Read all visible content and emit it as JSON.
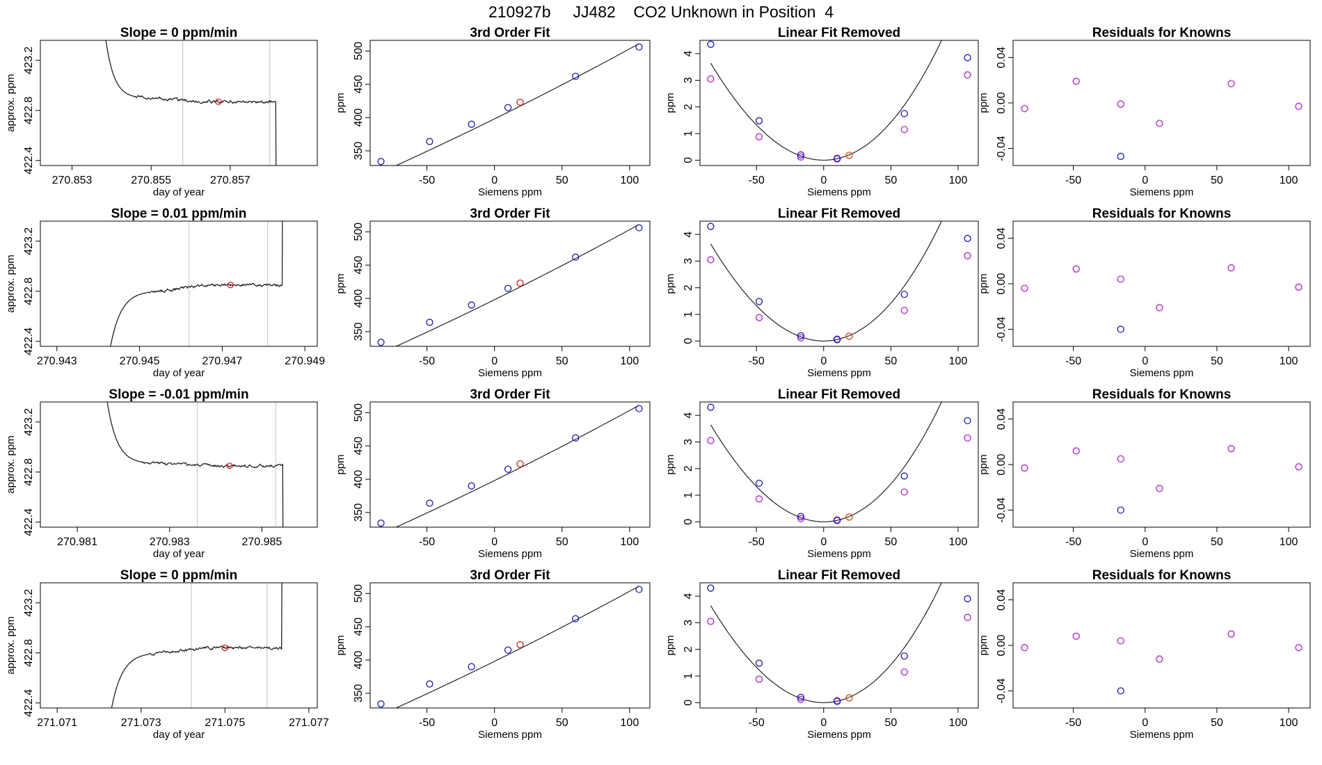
{
  "page_title": "210927b     JJ482    CO2 Unknown in Position  4",
  "colors": {
    "trace": "#222222",
    "window_lines": "#cccccc",
    "unknown_point": "#ff0000",
    "unknown_point_fit": "#ff4500",
    "known_points": "#0000ff",
    "residual_points": "#cc00ff",
    "axis": "#000000"
  },
  "chart_data": [
    {
      "type": "line",
      "row": 1,
      "panel": "trace",
      "title": "Slope =  0  ppm/min",
      "xlabel": "day of year",
      "ylabel": "approx. ppm",
      "xlim": [
        270.8522,
        270.8592
      ],
      "ylim": [
        422.36,
        423.36
      ],
      "xticks": [
        "270.853",
        "270.855",
        "270.857"
      ],
      "xtick_values": [
        270.853,
        270.855,
        270.857
      ],
      "yticks": [
        "422.4",
        "422.8",
        "423.2"
      ],
      "ytick_values": [
        422.4,
        422.8,
        423.2
      ],
      "window_lines": [
        270.8558,
        270.858
      ],
      "unknown_marker": {
        "x": 270.8567,
        "y": 422.87
      },
      "shape": "drop",
      "start": 270.8537,
      "plateau_start": 270.8546,
      "level_early": 422.91,
      "plateau": 422.87,
      "end": 270.85815,
      "noise": 0.012,
      "seed": 1
    },
    {
      "type": "line",
      "row": 1,
      "panel": "fit",
      "title": "3rd Order Fit",
      "xlabel": "Siemens ppm",
      "ylabel": "ppm",
      "xlim": [
        -92,
        115
      ],
      "ylim": [
        328,
        516
      ],
      "xticks": [
        "-50",
        "0",
        "50",
        "100"
      ],
      "xtick_values": [
        -50,
        0,
        50,
        100
      ],
      "yticks": [
        "350",
        "400",
        "450",
        "500"
      ],
      "ytick_values": [
        350,
        400,
        450,
        500
      ],
      "fit_curve": {
        "intercept": 398.0,
        "slope": 1.0,
        "curv": 0.00052
      },
      "known_points": [
        [
          -84,
          334
        ],
        [
          -48,
          364
        ],
        [
          -17,
          390
        ],
        [
          10,
          415
        ],
        [
          60,
          462
        ],
        [
          107,
          506
        ]
      ],
      "unknown_point": {
        "x": 19,
        "y": 423
      }
    },
    {
      "type": "scatter",
      "row": 1,
      "panel": "linear_removed",
      "title": "Linear Fit Removed",
      "xlabel": "Siemens ppm",
      "ylabel": "ppm",
      "xlim": [
        -92,
        115
      ],
      "ylim": [
        -0.2,
        4.5
      ],
      "xticks": [
        "-50",
        "0",
        "50",
        "100"
      ],
      "xtick_values": [
        -50,
        0,
        50,
        100
      ],
      "yticks": [
        "0",
        "1",
        "2",
        "3",
        "4"
      ],
      "ytick_values": [
        0,
        1,
        2,
        3,
        4
      ],
      "curve_coeffs": {
        "a2": 0.00055,
        "a3": 4e-07
      },
      "known_points": [
        [
          -84,
          4.35
        ],
        [
          -48,
          1.48
        ],
        [
          -17,
          0.2
        ],
        [
          10,
          0.05
        ],
        [
          60,
          1.75
        ],
        [
          107,
          3.85
        ]
      ],
      "magenta_points": [
        [
          -84,
          3.05
        ],
        [
          -48,
          0.88
        ],
        [
          -17,
          0.12
        ],
        [
          10,
          0.07
        ],
        [
          60,
          1.15
        ],
        [
          107,
          3.2
        ]
      ],
      "unknown_point": {
        "x": 19,
        "y": 0.18
      }
    },
    {
      "type": "scatter",
      "row": 1,
      "panel": "residuals",
      "title": "Residuals for Knowns",
      "xlabel": "Siemens ppm",
      "ylabel": "ppm",
      "xlim": [
        -92,
        115
      ],
      "ylim": [
        -0.055,
        0.055
      ],
      "xticks": [
        "-50",
        "0",
        "50",
        "100"
      ],
      "xtick_values": [
        -50,
        0,
        50,
        100
      ],
      "yticks": [
        "-0.04",
        "0.00",
        "0.04"
      ],
      "ytick_values": [
        -0.04,
        0.0,
        0.04
      ],
      "magenta_points": [
        [
          -84,
          -0.005
        ],
        [
          -48,
          0.019
        ],
        [
          -17,
          -0.001
        ],
        [
          10,
          -0.018
        ],
        [
          60,
          0.017
        ],
        [
          107,
          -0.003
        ]
      ],
      "known_points": [
        [
          -17,
          -0.047
        ]
      ]
    },
    {
      "type": "line",
      "row": 2,
      "panel": "trace",
      "title": "Slope =  0.01  ppm/min",
      "xlabel": "day of year",
      "ylabel": "approx. ppm",
      "xlim": [
        270.9426,
        270.9493
      ],
      "ylim": [
        422.36,
        423.36
      ],
      "xticks": [
        "270.943",
        "270.945",
        "270.947",
        "270.949"
      ],
      "xtick_values": [
        270.943,
        270.945,
        270.947,
        270.949
      ],
      "yticks": [
        "422.4",
        "422.8",
        "423.2"
      ],
      "ytick_values": [
        422.4,
        422.8,
        423.2
      ],
      "window_lines": [
        270.9462,
        270.9481
      ],
      "unknown_marker": {
        "x": 270.9472,
        "y": 422.85
      },
      "shape": "rise",
      "start": 270.9441,
      "plateau_start": 270.9452,
      "level_early": 422.79,
      "plateau": 422.85,
      "end": 270.94845,
      "noise": 0.012,
      "seed": 2
    },
    {
      "type": "line",
      "row": 2,
      "panel": "fit",
      "title": "3rd Order Fit",
      "xlabel": "Siemens ppm",
      "ylabel": "ppm",
      "xlim": [
        -92,
        115
      ],
      "ylim": [
        328,
        516
      ],
      "xticks": [
        "-50",
        "0",
        "50",
        "100"
      ],
      "xtick_values": [
        -50,
        0,
        50,
        100
      ],
      "yticks": [
        "350",
        "400",
        "450",
        "500"
      ],
      "ytick_values": [
        350,
        400,
        450,
        500
      ],
      "fit_curve": {
        "intercept": 398.0,
        "slope": 1.0,
        "curv": 0.00052
      },
      "known_points": [
        [
          -84,
          334
        ],
        [
          -48,
          364
        ],
        [
          -17,
          390
        ],
        [
          10,
          415
        ],
        [
          60,
          462
        ],
        [
          107,
          506
        ]
      ],
      "unknown_point": {
        "x": 19,
        "y": 423
      }
    },
    {
      "type": "scatter",
      "row": 2,
      "panel": "linear_removed",
      "title": "Linear Fit Removed",
      "xlabel": "Siemens ppm",
      "ylabel": "ppm",
      "xlim": [
        -92,
        115
      ],
      "ylim": [
        -0.2,
        4.5
      ],
      "xticks": [
        "-50",
        "0",
        "50",
        "100"
      ],
      "xtick_values": [
        -50,
        0,
        50,
        100
      ],
      "yticks": [
        "0",
        "1",
        "2",
        "3",
        "4"
      ],
      "ytick_values": [
        0,
        1,
        2,
        3,
        4
      ],
      "curve_coeffs": {
        "a2": 0.00055,
        "a3": 4e-07
      },
      "known_points": [
        [
          -84,
          4.3
        ],
        [
          -48,
          1.48
        ],
        [
          -17,
          0.2
        ],
        [
          10,
          0.05
        ],
        [
          60,
          1.75
        ],
        [
          107,
          3.85
        ]
      ],
      "magenta_points": [
        [
          -84,
          3.05
        ],
        [
          -48,
          0.88
        ],
        [
          -17,
          0.12
        ],
        [
          10,
          0.07
        ],
        [
          60,
          1.15
        ],
        [
          107,
          3.2
        ]
      ],
      "unknown_point": {
        "x": 19,
        "y": 0.18
      }
    },
    {
      "type": "scatter",
      "row": 2,
      "panel": "residuals",
      "title": "Residuals for Knowns",
      "xlabel": "Siemens ppm",
      "ylabel": "ppm",
      "xlim": [
        -92,
        115
      ],
      "ylim": [
        -0.055,
        0.055
      ],
      "xticks": [
        "-50",
        "0",
        "50",
        "100"
      ],
      "xtick_values": [
        -50,
        0,
        50,
        100
      ],
      "yticks": [
        "-0.04",
        "0.00",
        "0.04"
      ],
      "ytick_values": [
        -0.04,
        0.0,
        0.04
      ],
      "magenta_points": [
        [
          -84,
          -0.004
        ],
        [
          -48,
          0.013
        ],
        [
          -17,
          0.004
        ],
        [
          10,
          -0.021
        ],
        [
          60,
          0.014
        ],
        [
          107,
          -0.003
        ]
      ],
      "known_points": [
        [
          -17,
          -0.04
        ]
      ]
    },
    {
      "type": "line",
      "row": 3,
      "panel": "trace",
      "title": "Slope =  -0.01  ppm/min",
      "xlabel": "day of year",
      "ylabel": "approx. ppm",
      "xlim": [
        270.9802,
        270.9862
      ],
      "ylim": [
        422.36,
        423.36
      ],
      "xticks": [
        "270.981",
        "270.983",
        "270.985"
      ],
      "xtick_values": [
        270.981,
        270.983,
        270.985
      ],
      "yticks": [
        "422.4",
        "422.8",
        "423.2"
      ],
      "ytick_values": [
        422.4,
        422.8,
        423.2
      ],
      "window_lines": [
        270.9836,
        270.9853
      ],
      "unknown_marker": {
        "x": 270.9843,
        "y": 422.85
      },
      "shape": "drop",
      "start": 270.9815,
      "plateau_start": 270.9824,
      "level_early": 422.88,
      "plateau": 422.85,
      "end": 270.98545,
      "noise": 0.012,
      "seed": 3
    },
    {
      "type": "line",
      "row": 3,
      "panel": "fit",
      "title": "3rd Order Fit",
      "xlabel": "Siemens ppm",
      "ylabel": "ppm",
      "xlim": [
        -92,
        115
      ],
      "ylim": [
        328,
        516
      ],
      "xticks": [
        "-50",
        "0",
        "50",
        "100"
      ],
      "xtick_values": [
        -50,
        0,
        50,
        100
      ],
      "yticks": [
        "350",
        "400",
        "450",
        "500"
      ],
      "ytick_values": [
        350,
        400,
        450,
        500
      ],
      "fit_curve": {
        "intercept": 398.0,
        "slope": 1.0,
        "curv": 0.00052
      },
      "known_points": [
        [
          -84,
          334
        ],
        [
          -48,
          364
        ],
        [
          -17,
          390
        ],
        [
          10,
          415
        ],
        [
          60,
          462
        ],
        [
          107,
          506
        ]
      ],
      "unknown_point": {
        "x": 19,
        "y": 423
      }
    },
    {
      "type": "scatter",
      "row": 3,
      "panel": "linear_removed",
      "title": "Linear Fit Removed",
      "xlabel": "Siemens ppm",
      "ylabel": "ppm",
      "xlim": [
        -92,
        115
      ],
      "ylim": [
        -0.2,
        4.5
      ],
      "xticks": [
        "-50",
        "0",
        "50",
        "100"
      ],
      "xtick_values": [
        -50,
        0,
        50,
        100
      ],
      "yticks": [
        "0",
        "1",
        "2",
        "3",
        "4"
      ],
      "ytick_values": [
        0,
        1,
        2,
        3,
        4
      ],
      "curve_coeffs": {
        "a2": 0.00055,
        "a3": 4e-07
      },
      "known_points": [
        [
          -84,
          4.3
        ],
        [
          -48,
          1.45
        ],
        [
          -17,
          0.2
        ],
        [
          10,
          0.05
        ],
        [
          60,
          1.72
        ],
        [
          107,
          3.8
        ]
      ],
      "magenta_points": [
        [
          -84,
          3.05
        ],
        [
          -48,
          0.86
        ],
        [
          -17,
          0.12
        ],
        [
          10,
          0.07
        ],
        [
          60,
          1.12
        ],
        [
          107,
          3.15
        ]
      ],
      "unknown_point": {
        "x": 19,
        "y": 0.18
      }
    },
    {
      "type": "scatter",
      "row": 3,
      "panel": "residuals",
      "title": "Residuals for Knowns",
      "xlabel": "Siemens ppm",
      "ylabel": "ppm",
      "xlim": [
        -92,
        115
      ],
      "ylim": [
        -0.055,
        0.055
      ],
      "xticks": [
        "-50",
        "0",
        "50",
        "100"
      ],
      "xtick_values": [
        -50,
        0,
        50,
        100
      ],
      "yticks": [
        "-0.04",
        "0.00",
        "0.04"
      ],
      "ytick_values": [
        -0.04,
        0.0,
        0.04
      ],
      "magenta_points": [
        [
          -84,
          -0.003
        ],
        [
          -48,
          0.012
        ],
        [
          -17,
          0.005
        ],
        [
          10,
          -0.021
        ],
        [
          60,
          0.014
        ],
        [
          107,
          -0.002
        ]
      ],
      "known_points": [
        [
          -17,
          -0.04
        ]
      ]
    },
    {
      "type": "line",
      "row": 4,
      "panel": "trace",
      "title": "Slope =  0  ppm/min",
      "xlabel": "day of year",
      "ylabel": "approx. ppm",
      "xlim": [
        271.0706,
        271.0772
      ],
      "ylim": [
        422.36,
        423.36
      ],
      "xticks": [
        "271.071",
        "271.073",
        "271.075",
        "271.077"
      ],
      "xtick_values": [
        271.071,
        271.073,
        271.075,
        271.077
      ],
      "yticks": [
        "422.4",
        "422.8",
        "423.2"
      ],
      "ytick_values": [
        422.4,
        422.8,
        423.2
      ],
      "window_lines": [
        271.0742,
        271.076
      ],
      "unknown_marker": {
        "x": 271.075,
        "y": 422.84
      },
      "shape": "rise",
      "start": 271.0721,
      "plateau_start": 271.0732,
      "level_early": 422.79,
      "plateau": 422.84,
      "end": 271.07635,
      "noise": 0.012,
      "seed": 4
    },
    {
      "type": "line",
      "row": 4,
      "panel": "fit",
      "title": "3rd Order Fit",
      "xlabel": "Siemens ppm",
      "ylabel": "ppm",
      "xlim": [
        -92,
        115
      ],
      "ylim": [
        328,
        516
      ],
      "xticks": [
        "-50",
        "0",
        "50",
        "100"
      ],
      "xtick_values": [
        -50,
        0,
        50,
        100
      ],
      "yticks": [
        "350",
        "400",
        "450",
        "500"
      ],
      "ytick_values": [
        350,
        400,
        450,
        500
      ],
      "fit_curve": {
        "intercept": 398.0,
        "slope": 1.0,
        "curv": 0.00052
      },
      "known_points": [
        [
          -84,
          334
        ],
        [
          -48,
          364
        ],
        [
          -17,
          390
        ],
        [
          10,
          415
        ],
        [
          60,
          462
        ],
        [
          107,
          506
        ]
      ],
      "unknown_point": {
        "x": 19,
        "y": 423
      }
    },
    {
      "type": "scatter",
      "row": 4,
      "panel": "linear_removed",
      "title": "Linear Fit Removed",
      "xlabel": "Siemens ppm",
      "ylabel": "ppm",
      "xlim": [
        -92,
        115
      ],
      "ylim": [
        -0.2,
        4.5
      ],
      "xticks": [
        "-50",
        "0",
        "50",
        "100"
      ],
      "xtick_values": [
        -50,
        0,
        50,
        100
      ],
      "yticks": [
        "0",
        "1",
        "2",
        "3",
        "4"
      ],
      "ytick_values": [
        0,
        1,
        2,
        3,
        4
      ],
      "curve_coeffs": {
        "a2": 0.00055,
        "a3": 4e-07
      },
      "known_points": [
        [
          -84,
          4.3
        ],
        [
          -48,
          1.48
        ],
        [
          -17,
          0.2
        ],
        [
          10,
          0.05
        ],
        [
          60,
          1.75
        ],
        [
          107,
          3.9
        ]
      ],
      "magenta_points": [
        [
          -84,
          3.05
        ],
        [
          -48,
          0.88
        ],
        [
          -17,
          0.12
        ],
        [
          10,
          0.07
        ],
        [
          60,
          1.15
        ],
        [
          107,
          3.2
        ]
      ],
      "unknown_point": {
        "x": 19,
        "y": 0.18
      }
    },
    {
      "type": "scatter",
      "row": 4,
      "panel": "residuals",
      "title": "Residuals for Knowns",
      "xlabel": "Siemens ppm",
      "ylabel": "ppm",
      "xlim": [
        -92,
        115
      ],
      "ylim": [
        -0.055,
        0.055
      ],
      "xticks": [
        "-50",
        "0",
        "50",
        "100"
      ],
      "xtick_values": [
        -50,
        0,
        50,
        100
      ],
      "yticks": [
        "-0.04",
        "0.00",
        "0.04"
      ],
      "ytick_values": [
        -0.04,
        0.0,
        0.04
      ],
      "magenta_points": [
        [
          -84,
          -0.002
        ],
        [
          -48,
          0.008
        ],
        [
          -17,
          0.004
        ],
        [
          10,
          -0.012
        ],
        [
          60,
          0.01
        ],
        [
          107,
          -0.002
        ]
      ],
      "known_points": [
        [
          -17,
          -0.04
        ]
      ]
    }
  ]
}
